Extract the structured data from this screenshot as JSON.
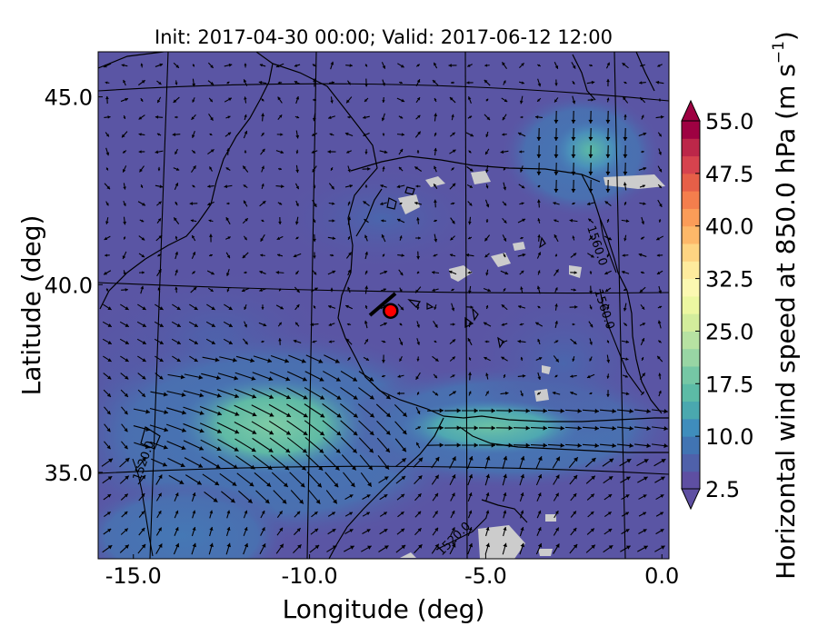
{
  "chart_data": {
    "type": "heatmap",
    "title": "Init: 2017-04-30 00:00; Valid: 2017-06-12 12:00",
    "xlabel": "Longitude (deg)",
    "ylabel": "Latitude (deg)",
    "xlim": [
      -16.0,
      0.2
    ],
    "ylim": [
      32.7,
      46.2
    ],
    "x_ticks": [
      "-15.0",
      "-10.0",
      "-5.0",
      "0.0"
    ],
    "y_ticks": [
      "35.0",
      "40.0",
      "45.0"
    ],
    "colorbar": {
      "label_main": "Horizontal wind speed at 850.0 hPa (m s",
      "label_sup": "−1",
      "label_end": ")",
      "ticks": [
        "2.5",
        "10.0",
        "17.5",
        "25.0",
        "32.5",
        "40.0",
        "47.5",
        "55.0"
      ],
      "min": 2.5,
      "max": 55.0,
      "levels": 21,
      "colors": [
        "#5e4fa2",
        "#4f61aa",
        "#4174b3",
        "#3f8dbc",
        "#4aa8af",
        "#5cbba6",
        "#75c7a5",
        "#98d5a4",
        "#b7e2a2",
        "#d3ed9c",
        "#ecf7a1",
        "#fbf8b1",
        "#feeb9d",
        "#fed482",
        "#fdb869",
        "#fb9c58",
        "#f47e4d",
        "#e65f48",
        "#d6434e",
        "#bc2749",
        "#9e0142"
      ]
    },
    "contour_labels": [
      "1560.0",
      "1560.0",
      "1520.0",
      "1520.0"
    ],
    "marker": {
      "lon": -7.7,
      "lat": 39.3,
      "color": "#ff0000"
    },
    "field_style": {
      "background": "#5a55a4",
      "band_color": "#4a7fb8",
      "jet_color": "#5fbaa5",
      "missing_color": "#cccccc"
    }
  }
}
